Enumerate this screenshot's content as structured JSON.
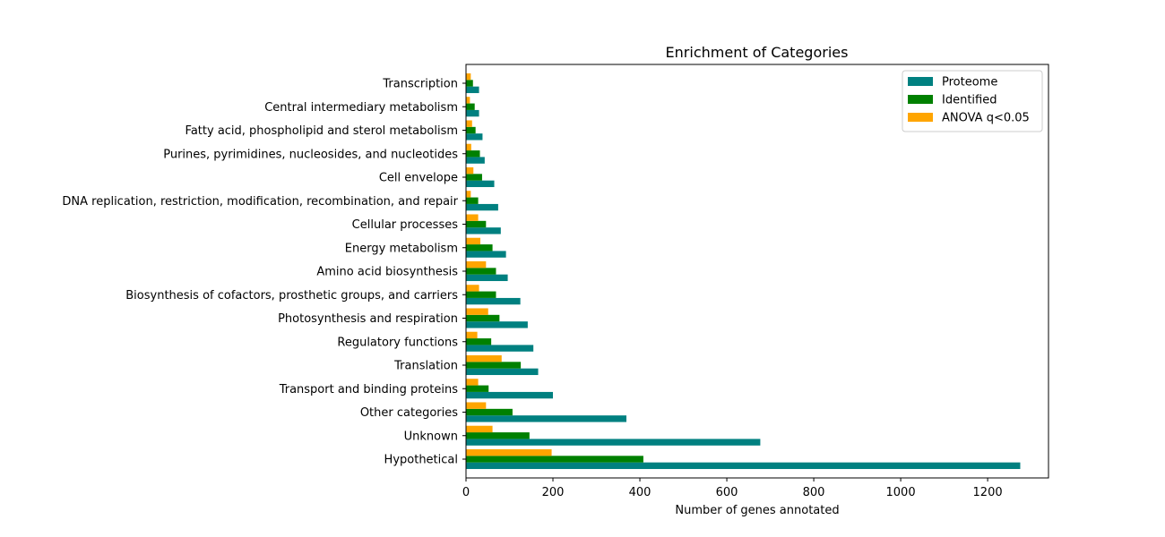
{
  "chart_data": {
    "type": "bar",
    "orientation": "horizontal",
    "title": "Enrichment of Categories",
    "xlabel": "Number of genes annotated",
    "ylabel": "",
    "xlim": [
      0,
      1340
    ],
    "xticks": [
      0,
      200,
      400,
      600,
      800,
      1000,
      1200
    ],
    "categories": [
      "Hypothetical",
      "Unknown",
      "Other categories",
      "Transport and binding proteins",
      "Translation",
      "Regulatory functions",
      "Photosynthesis and respiration",
      "Biosynthesis of cofactors, prosthetic groups, and carriers",
      "Amino acid biosynthesis",
      "Energy metabolism",
      "Cellular processes",
      "DNA replication, restriction, modification, recombination, and repair",
      "Cell envelope",
      "Purines, pyrimidines, nucleosides, and nucleotides",
      "Fatty acid, phospholipid and sterol metabolism",
      "Central intermediary metabolism",
      "Transcription"
    ],
    "series": [
      {
        "name": "Proteome",
        "color": "#008080",
        "values": [
          1275,
          677,
          369,
          200,
          166,
          155,
          142,
          125,
          96,
          92,
          80,
          74,
          65,
          43,
          38,
          30,
          30
        ]
      },
      {
        "name": "Identified",
        "color": "#008000",
        "values": [
          408,
          146,
          107,
          52,
          126,
          58,
          77,
          69,
          69,
          61,
          46,
          28,
          37,
          32,
          22,
          20,
          16
        ]
      },
      {
        "name": "ANOVA q<0.05",
        "color": "#ffa500",
        "values": [
          197,
          61,
          46,
          28,
          82,
          26,
          51,
          30,
          46,
          33,
          28,
          11,
          17,
          12,
          14,
          9,
          11
        ]
      }
    ],
    "legend_position": "top-right",
    "grid": false
  }
}
